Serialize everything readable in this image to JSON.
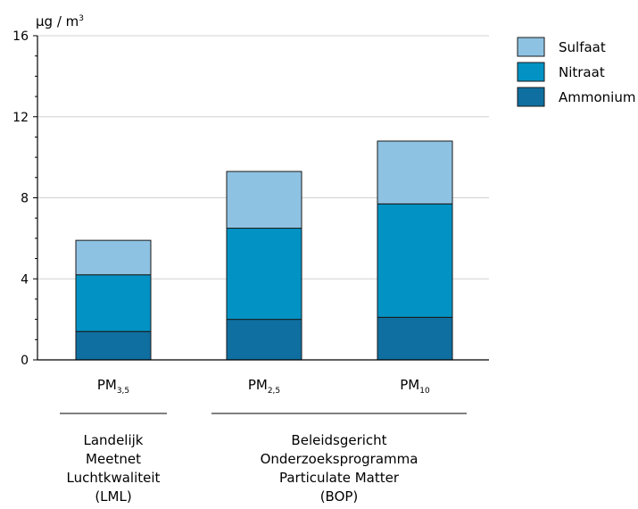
{
  "chart_data": {
    "type": "bar",
    "stacked": true,
    "ylabel": "µg / m",
    "ylabel_sup": "3",
    "ylim": [
      0,
      16
    ],
    "yticks": [
      0,
      4,
      8,
      12,
      16
    ],
    "grid": true,
    "legend_position": "top-right",
    "categories": [
      {
        "base": "PM",
        "sub": "3,5"
      },
      {
        "base": "PM",
        "sub": "2,5"
      },
      {
        "base": "PM",
        "sub": "10"
      }
    ],
    "series": [
      {
        "name": "Ammonium",
        "color": "#0f6fa0",
        "values": [
          1.4,
          2.0,
          2.1
        ]
      },
      {
        "name": "Nitraat",
        "color": "#0392c4",
        "values": [
          2.8,
          4.5,
          5.6
        ]
      },
      {
        "name": "Sulfaat",
        "color": "#8ec2e2",
        "values": [
          1.7,
          2.8,
          3.1
        ]
      }
    ],
    "legend_order": [
      "Sulfaat",
      "Nitraat",
      "Ammonium"
    ],
    "groups": [
      {
        "categories": [
          0
        ],
        "lines": [
          "Landelijk",
          "Meetnet",
          "Luchtkwaliteit",
          "(LML)"
        ]
      },
      {
        "categories": [
          1,
          2
        ],
        "lines": [
          "Beleidsgericht",
          "Onderzoeksprogramma",
          "Particulate Matter",
          "(BOP)"
        ]
      }
    ]
  }
}
